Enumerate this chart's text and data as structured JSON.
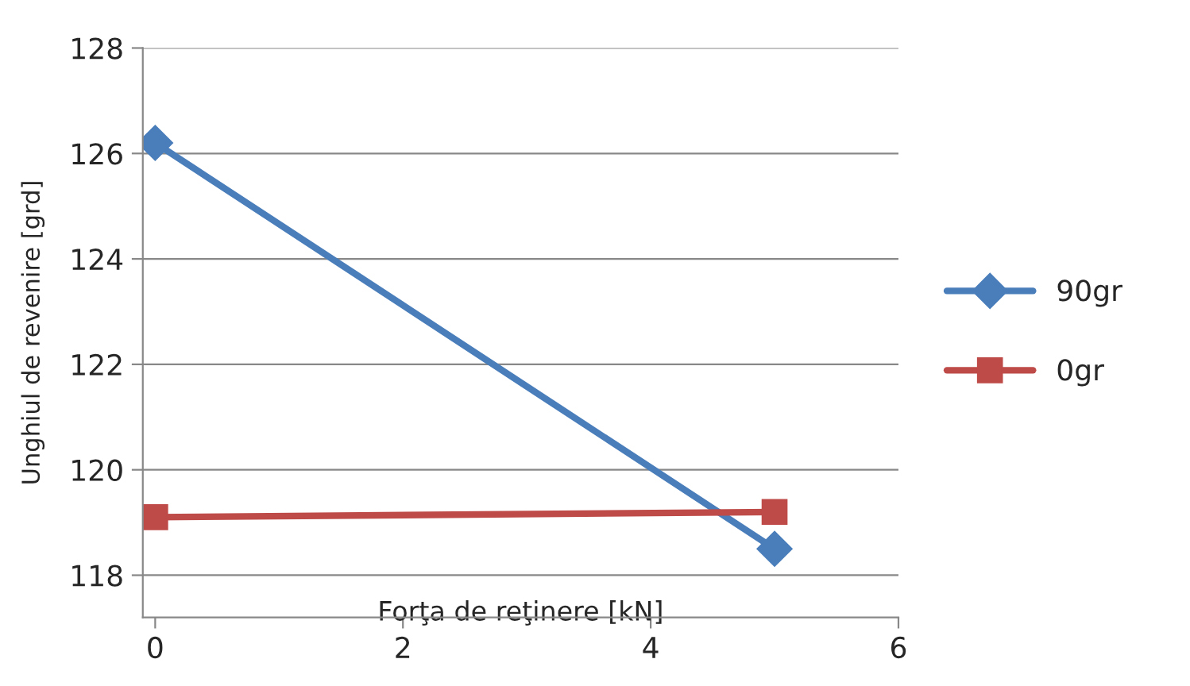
{
  "chart_data": {
    "type": "line",
    "xlabel": "Forţa de reţinere [kN]",
    "ylabel": "Unghiul de revenire [grd]",
    "x": [
      0,
      5
    ],
    "series": [
      {
        "name": "90gr",
        "color": "#4a7ebb",
        "values": [
          126.2,
          118.5
        ],
        "marker": "diamond"
      },
      {
        "name": "0gr",
        "color": "#be4b48",
        "values": [
          119.1,
          119.2
        ],
        "marker": "square"
      }
    ],
    "xlim": [
      -0.1,
      6
    ],
    "xticks": [
      0,
      2,
      4,
      6
    ],
    "ylim": [
      117.2,
      128
    ],
    "yticks": [
      118,
      120,
      122,
      124,
      126,
      128
    ],
    "grid": "y",
    "legend": "right",
    "line_style": "solid"
  }
}
